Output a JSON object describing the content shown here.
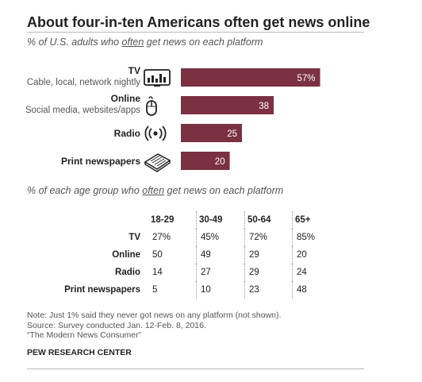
{
  "title": "About four-in-ten Americans often get news online",
  "subtitle": {
    "before": "% of U.S. adults who ",
    "underlined": "often",
    "after": " get news on each platform"
  },
  "colors": {
    "bar": "#7b3141",
    "bar_label": "#ffffff"
  },
  "chart_data": {
    "type": "bar",
    "orientation": "horizontal",
    "categories": [
      "TV",
      "Online",
      "Radio",
      "Print newspapers"
    ],
    "category_subtitles": [
      "Cable, local, network nightly",
      "Social media, websites/apps",
      "",
      ""
    ],
    "category_icons": [
      "tv-icon",
      "computer-mouse-icon",
      "radio-broadcast-icon",
      "newspaper-icon"
    ],
    "values": [
      57,
      38,
      25,
      20
    ],
    "value_labels": [
      "57%",
      "38",
      "25",
      "20"
    ],
    "xlim": [
      0,
      100
    ],
    "grid": false,
    "legend": "none"
  },
  "age_table": {
    "subtitle": {
      "before": "% of each age group who ",
      "underlined": "often",
      "after": " get news on each platform"
    },
    "columns": [
      "18-29",
      "30-49",
      "50-64",
      "65+"
    ],
    "rows": [
      {
        "label": "TV",
        "values": [
          "27%",
          "45%",
          "72%",
          "85%"
        ]
      },
      {
        "label": "Online",
        "values": [
          "50",
          "49",
          "29",
          "20"
        ]
      },
      {
        "label": "Radio",
        "values": [
          "14",
          "27",
          "29",
          "24"
        ]
      },
      {
        "label": "Print newspapers",
        "values": [
          "5",
          "10",
          "23",
          "48"
        ]
      }
    ]
  },
  "notes": [
    "Note: Just 1% said they never got news on any platform (not shown).",
    "Source: Survey conducted Jan. 12-Feb. 8, 2016.",
    "“The Modern News Consumer”"
  ],
  "source_org": "PEW RESEARCH CENTER"
}
